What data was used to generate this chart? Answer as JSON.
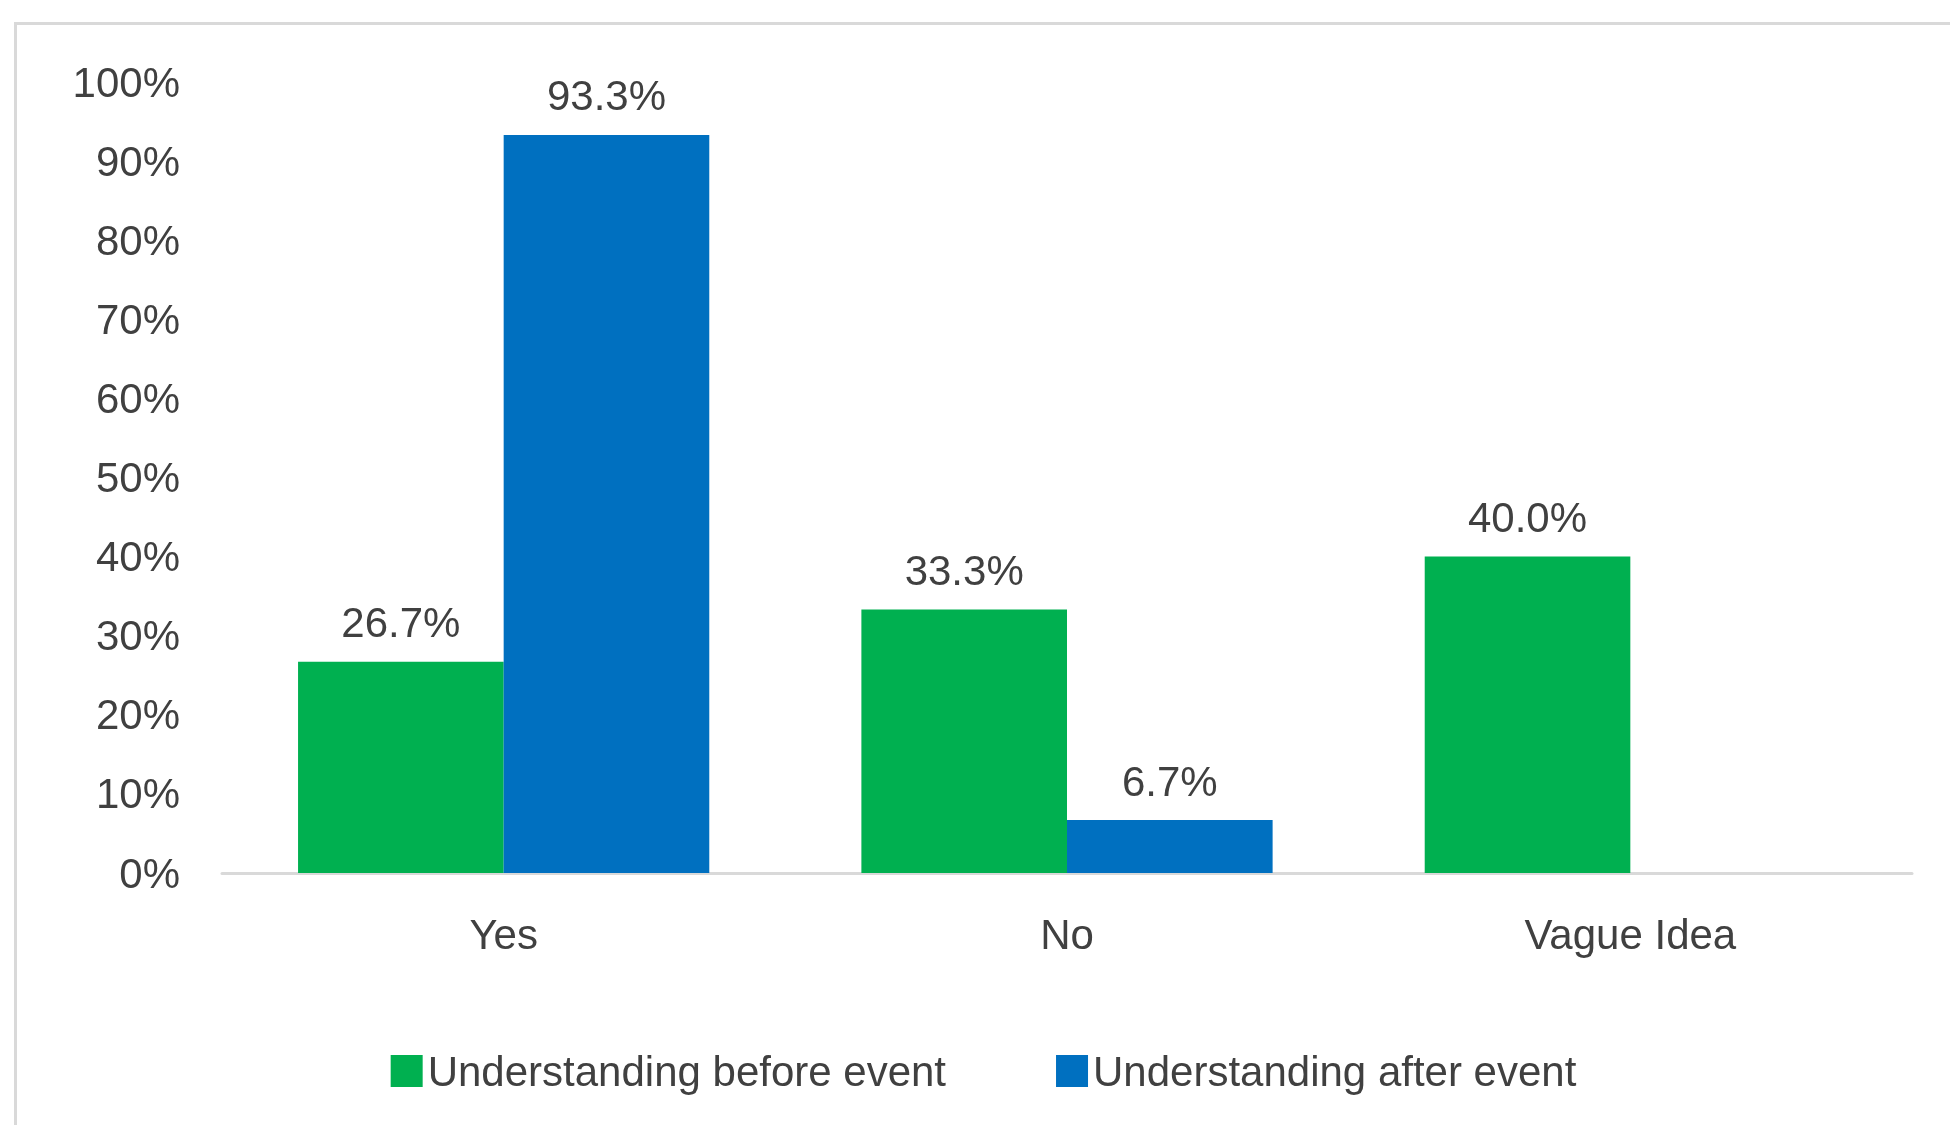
{
  "chart_data": {
    "type": "bar",
    "categories": [
      "Yes",
      "No",
      "Vague Idea"
    ],
    "series": [
      {
        "name": "Understanding before event",
        "color": "#00b050",
        "values": [
          26.7,
          33.3,
          40.0
        ],
        "value_labels": [
          "26.7%",
          "33.3%",
          "40.0%"
        ]
      },
      {
        "name": "Understanding after event",
        "color": "#0070c0",
        "values": [
          93.3,
          6.7,
          null
        ],
        "value_labels": [
          "93.3%",
          "6.7%",
          null
        ]
      }
    ],
    "ylim": [
      0,
      100
    ],
    "yticks": [
      {
        "value": 0,
        "label": "0%"
      },
      {
        "value": 10,
        "label": "10%"
      },
      {
        "value": 20,
        "label": "20%"
      },
      {
        "value": 30,
        "label": "30%"
      },
      {
        "value": 40,
        "label": "40%"
      },
      {
        "value": 50,
        "label": "50%"
      },
      {
        "value": 60,
        "label": "60%"
      },
      {
        "value": 70,
        "label": "70%"
      },
      {
        "value": 80,
        "label": "80%"
      },
      {
        "value": 90,
        "label": "90%"
      },
      {
        "value": 100,
        "label": "100%"
      }
    ],
    "grid": false,
    "legend": "bottom"
  }
}
